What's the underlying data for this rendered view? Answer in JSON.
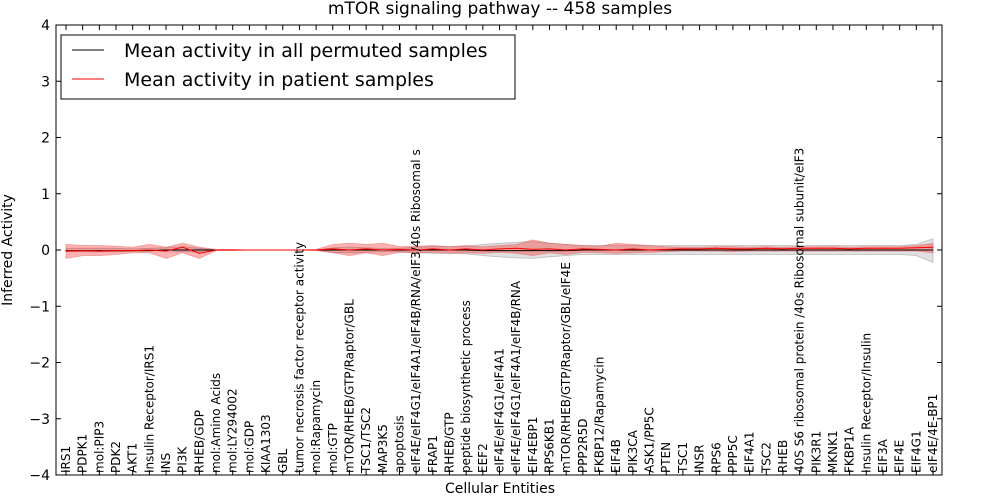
{
  "chart_data": {
    "type": "line",
    "title": "mTOR signaling pathway -- 458 samples",
    "xlabel": "Cellular Entities",
    "ylabel": "Inferred Activity",
    "ylim": [
      -4,
      4
    ],
    "yticks": [
      -4,
      -3,
      -2,
      -1,
      0,
      1,
      2,
      3,
      4
    ],
    "ytick_labels": [
      "−4",
      "−3",
      "−2",
      "−1",
      "0",
      "1",
      "2",
      "3",
      "4"
    ],
    "grid": false,
    "legend_position": "top-left",
    "categories": [
      "IRS1",
      "PDPK1",
      "mol:PIP3",
      "PDK2",
      "AKT1",
      "Insulin Receptor/IRS1",
      "INS",
      "PI3K",
      "RHEB/GDP",
      "mol:Amino Acids",
      "mol:LY294002",
      "mol:GDP",
      "KIAA1303",
      "GBL",
      "tumor necrosis factor receptor activity",
      "mol:Rapamycin",
      "mol:GTP",
      "mTOR/RHEB/GTP/Raptor/GBL",
      "TSC1/TSC2",
      "MAP3K5",
      "apoptosis",
      "eIF4E/eIF4G1/eIF4A1/eIF4B/RNA/eIF3/40s Ribosomal s",
      "FRAP1",
      "RHEB/GTP",
      "peptide biosynthetic process",
      "EEF2",
      "eIF4E/eIF4G1/eIF4A1",
      "eIF4E/eIF4G1/eIF4A1/eIF4B/RNA",
      "EIF4EBP1",
      "RPS6KB1",
      "mTOR/RHEB/GTP/Raptor/GBL/eIF4E",
      "PPP2R5D",
      "FKBP12/Rapamycin",
      "EIF4B",
      "PIK3CA",
      "ASK1/PP5C",
      "PTEN",
      "TSC1",
      "INSR",
      "RPS6",
      "PPP5C",
      "EIF4A1",
      "TSC2",
      "RHEB",
      "40S S6 ribosomal protein /40s Ribosomal subunit/eIF3",
      "PIK3R1",
      "MKNK1",
      "FKBP1A",
      "Insulin Receptor/Insulin",
      "EIF3A",
      "EIF4E",
      "EIF4G1",
      "eIF4E/4E-BP1"
    ],
    "series": [
      {
        "name": "Mean activity in all permuted samples",
        "color": "#000000",
        "values": [
          -0.01,
          -0.01,
          -0.01,
          -0.01,
          -0.01,
          -0.01,
          0.0,
          0.0,
          0.0,
          0.0,
          0.0,
          0.0,
          0.0,
          0.0,
          0.0,
          0.0,
          0.0,
          0.0,
          0.0,
          0.0,
          0.0,
          0.0,
          0.0,
          0.0,
          0.0,
          -0.01,
          -0.01,
          -0.01,
          -0.01,
          -0.01,
          -0.01,
          0.0,
          0.0,
          0.0,
          0.0,
          0.0,
          0.0,
          0.0,
          0.0,
          0.0,
          0.0,
          0.0,
          0.0,
          0.0,
          0.0,
          0.0,
          0.0,
          0.0,
          0.0,
          0.0,
          0.0,
          0.0,
          0.0
        ],
        "band_low": [
          -0.03,
          -0.03,
          -0.03,
          -0.03,
          -0.02,
          -0.02,
          -0.01,
          -0.03,
          -0.03,
          0.0,
          0.0,
          0.0,
          0.0,
          0.0,
          0.0,
          0.0,
          -0.04,
          -0.05,
          -0.04,
          -0.03,
          -0.03,
          -0.05,
          -0.06,
          -0.06,
          -0.07,
          -0.1,
          -0.12,
          -0.14,
          -0.15,
          -0.12,
          -0.1,
          -0.08,
          -0.08,
          -0.08,
          -0.08,
          -0.08,
          -0.08,
          -0.08,
          -0.08,
          -0.08,
          -0.08,
          -0.08,
          -0.08,
          -0.08,
          -0.08,
          -0.08,
          -0.08,
          -0.08,
          -0.08,
          -0.08,
          -0.08,
          -0.1,
          -0.22
        ],
        "band_high": [
          0.03,
          0.03,
          0.03,
          0.03,
          0.02,
          0.03,
          0.04,
          0.06,
          0.03,
          0.0,
          0.0,
          0.0,
          0.0,
          0.0,
          0.0,
          0.0,
          0.04,
          0.05,
          0.04,
          0.03,
          0.03,
          0.05,
          0.06,
          0.06,
          0.07,
          0.1,
          0.12,
          0.14,
          0.15,
          0.12,
          0.1,
          0.08,
          0.08,
          0.08,
          0.08,
          0.08,
          0.08,
          0.08,
          0.08,
          0.08,
          0.08,
          0.08,
          0.08,
          0.08,
          0.08,
          0.08,
          0.08,
          0.08,
          0.08,
          0.08,
          0.08,
          0.1,
          0.2
        ]
      },
      {
        "name": "Mean activity in patient samples",
        "color": "#ff0000",
        "values": [
          -0.02,
          -0.01,
          -0.02,
          -0.01,
          -0.01,
          0.0,
          -0.02,
          0.05,
          -0.06,
          0.0,
          0.0,
          0.0,
          0.0,
          0.0,
          0.0,
          0.0,
          0.02,
          0.0,
          0.02,
          0.0,
          0.01,
          0.0,
          0.02,
          0.0,
          0.02,
          0.0,
          0.02,
          0.03,
          0.01,
          0.02,
          0.0,
          0.02,
          0.01,
          0.0,
          0.02,
          0.0,
          0.01,
          0.02,
          0.02,
          0.03,
          0.02,
          0.02,
          0.03,
          0.02,
          0.03,
          0.03,
          0.03,
          0.02,
          0.03,
          0.03,
          0.03,
          0.04,
          0.05
        ],
        "band_low": [
          -0.15,
          -0.1,
          -0.1,
          -0.08,
          -0.05,
          -0.05,
          -0.15,
          -0.05,
          -0.15,
          -0.01,
          -0.01,
          0.0,
          0.0,
          0.0,
          0.0,
          -0.01,
          -0.05,
          -0.1,
          -0.05,
          -0.1,
          -0.04,
          -0.05,
          -0.04,
          -0.06,
          -0.05,
          -0.06,
          -0.04,
          -0.06,
          -0.1,
          -0.05,
          -0.08,
          -0.04,
          -0.05,
          -0.06,
          -0.05,
          -0.04,
          -0.03,
          -0.02,
          -0.02,
          -0.02,
          -0.03,
          -0.02,
          -0.02,
          -0.02,
          -0.02,
          -0.02,
          -0.02,
          -0.02,
          -0.02,
          -0.02,
          -0.02,
          -0.02,
          -0.05
        ],
        "band_high": [
          0.1,
          0.08,
          0.08,
          0.07,
          0.05,
          0.1,
          0.05,
          0.12,
          0.05,
          0.01,
          0.01,
          0.0,
          0.0,
          0.0,
          0.0,
          0.01,
          0.1,
          0.12,
          0.1,
          0.12,
          0.06,
          0.07,
          0.08,
          0.06,
          0.08,
          0.06,
          0.08,
          0.1,
          0.18,
          0.12,
          0.1,
          0.08,
          0.07,
          0.12,
          0.1,
          0.08,
          0.06,
          0.05,
          0.05,
          0.06,
          0.06,
          0.05,
          0.06,
          0.05,
          0.06,
          0.06,
          0.06,
          0.05,
          0.06,
          0.06,
          0.06,
          0.08,
          0.12
        ]
      }
    ]
  }
}
